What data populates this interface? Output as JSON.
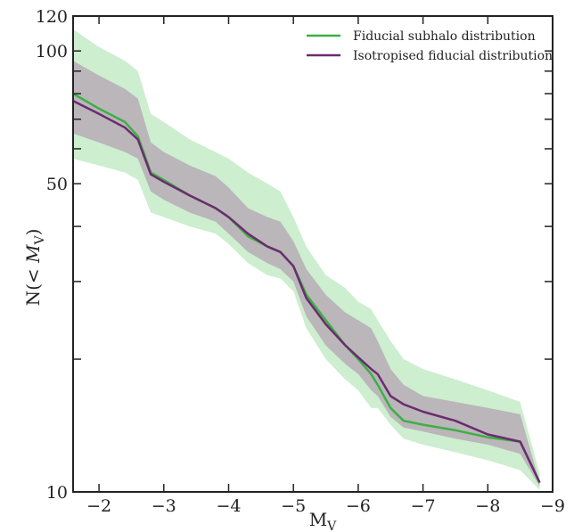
{
  "chart_data": {
    "type": "line",
    "xlabel_main": "M",
    "xlabel_sub": "V",
    "ylabel_prefix": "N(< ",
    "ylabel_var": "M",
    "ylabel_sub": "V",
    "ylabel_suffix": ")",
    "xlim": [
      -1.6,
      -9.0
    ],
    "ylim": [
      10,
      120
    ],
    "yscale": "log",
    "x_ticks": [
      -2,
      -3,
      -4,
      -5,
      -6,
      -7,
      -8,
      -9
    ],
    "x_tick_labels": [
      "−2",
      "−3",
      "−4",
      "−5",
      "−6",
      "−7",
      "−8",
      "−9"
    ],
    "y_labeled_ticks": [
      10,
      50,
      100,
      120
    ],
    "y_tick_labels": [
      "10",
      "50",
      "100",
      "120"
    ],
    "y_minor_ticks": [
      20,
      30,
      40,
      60,
      70,
      80,
      90
    ],
    "legend_position": "top-right",
    "colors": {
      "green": "#3cb043",
      "purple": "#6b2c6e",
      "green_band": "#cdeecf",
      "purple_band": "#b6acb6"
    },
    "series": [
      {
        "name": "Fiducial subhalo distribution",
        "color": "#3cb043",
        "x": [
          -1.6,
          -2.0,
          -2.4,
          -2.6,
          -2.8,
          -3.0,
          -3.4,
          -3.8,
          -4.0,
          -4.3,
          -4.6,
          -4.8,
          -5.0,
          -5.2,
          -5.5,
          -5.8,
          -6.0,
          -6.2,
          -6.3,
          -6.5,
          -6.7,
          -7.0,
          -7.5,
          -8.0,
          -8.5,
          -8.8
        ],
        "values": [
          80,
          74,
          69,
          64,
          53,
          51,
          47,
          44,
          42,
          38,
          36,
          35,
          32.5,
          28,
          24.5,
          21.5,
          20,
          18.5,
          17.5,
          15.5,
          14.5,
          14.2,
          13.8,
          13.3,
          13,
          10.5
        ]
      },
      {
        "name": "Isotropised fiducial distribution",
        "color": "#6b2c6e",
        "x": [
          -1.6,
          -2.0,
          -2.4,
          -2.6,
          -2.8,
          -3.0,
          -3.4,
          -3.8,
          -4.0,
          -4.3,
          -4.6,
          -4.8,
          -5.0,
          -5.2,
          -5.5,
          -5.8,
          -6.0,
          -6.2,
          -6.3,
          -6.5,
          -6.7,
          -7.0,
          -7.5,
          -8.0,
          -8.5,
          -8.8
        ],
        "values": [
          77,
          72,
          67,
          63,
          52.5,
          50.5,
          47,
          44,
          42,
          38.5,
          36,
          35,
          32.5,
          27.5,
          24,
          21.5,
          20.2,
          19,
          18.5,
          16.5,
          15.8,
          15.2,
          14.5,
          13.5,
          13,
          10.5
        ]
      }
    ],
    "bands": [
      {
        "color": "#cdeecf",
        "x": [
          -1.6,
          -2.0,
          -2.4,
          -2.6,
          -2.8,
          -3.0,
          -3.4,
          -3.8,
          -4.0,
          -4.3,
          -4.6,
          -4.8,
          -5.0,
          -5.2,
          -5.5,
          -5.8,
          -6.0,
          -6.2,
          -6.3,
          -6.5,
          -6.7,
          -7.0,
          -7.5,
          -8.0,
          -8.5,
          -8.8
        ],
        "upper": [
          112,
          102,
          95,
          90,
          72,
          69,
          63,
          59,
          57,
          53,
          50,
          48,
          42,
          36,
          31,
          29,
          27,
          26,
          24.5,
          22,
          20,
          19,
          18,
          17,
          16,
          11
        ],
        "lower": [
          57,
          55,
          53,
          51,
          43,
          42,
          40,
          38.5,
          36.5,
          33,
          31,
          30.5,
          28.5,
          23.5,
          20,
          18,
          17,
          15.5,
          15.5,
          14.2,
          13.2,
          12.8,
          12.3,
          11.8,
          11.2,
          10.1
        ]
      },
      {
        "color": "#b6acb6",
        "x": [
          -1.6,
          -2.0,
          -2.4,
          -2.6,
          -2.8,
          -3.0,
          -3.4,
          -3.8,
          -4.0,
          -4.3,
          -4.6,
          -4.8,
          -5.0,
          -5.2,
          -5.5,
          -5.8,
          -6.0,
          -6.2,
          -6.3,
          -6.5,
          -6.7,
          -7.0,
          -7.5,
          -8.0,
          -8.5,
          -8.8
        ],
        "upper": [
          95,
          88,
          82,
          78,
          62,
          59,
          55,
          52,
          49,
          44,
          42,
          41,
          37,
          32,
          28,
          25.5,
          24.5,
          23.5,
          22,
          19,
          17.5,
          16.5,
          16,
          15.5,
          15,
          10.5
        ],
        "lower": [
          65,
          62,
          59,
          57,
          48,
          46,
          43,
          41,
          38.5,
          35,
          33,
          32,
          30,
          25,
          21.5,
          19.5,
          18.5,
          17,
          16.5,
          14.8,
          14,
          13.7,
          13.2,
          12.8,
          12.2,
          10.3
        ]
      }
    ]
  }
}
